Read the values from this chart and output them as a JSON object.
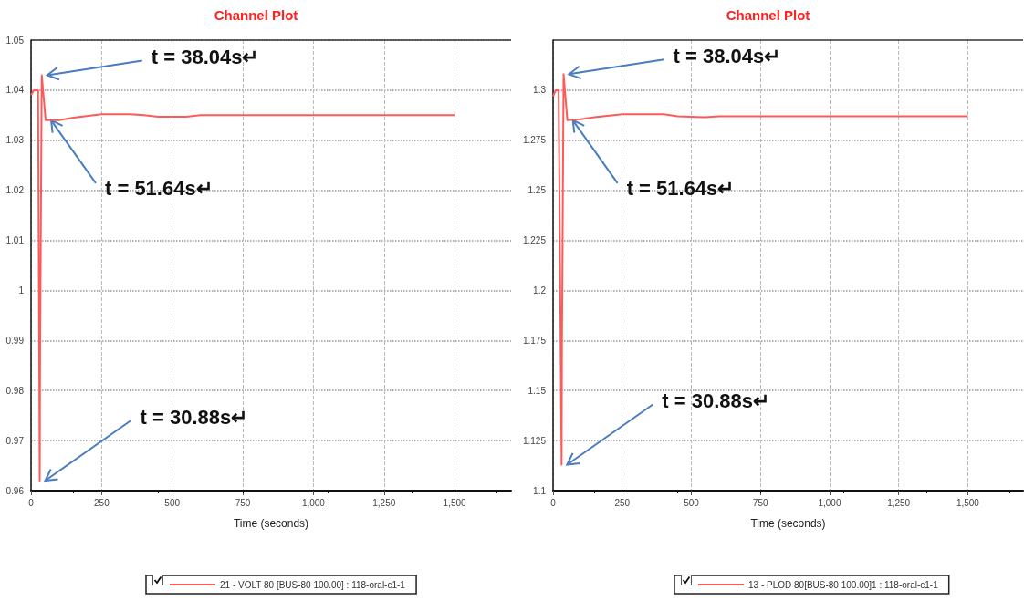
{
  "chart_data": [
    {
      "type": "line",
      "title": "Channel Plot",
      "xlabel": "Time (seconds)",
      "xlim": [
        0,
        1700
      ],
      "xticks": [
        0,
        250,
        500,
        750,
        {
          "value": 1000,
          "label": "1,000"
        },
        {
          "value": 1250,
          "label": "1,250"
        },
        {
          "value": 1500,
          "label": "1,500"
        }
      ],
      "ylim": [
        0.96,
        1.05
      ],
      "yticks": [
        0.96,
        0.97,
        0.98,
        0.99,
        1,
        1.01,
        1.02,
        1.03,
        1.04,
        1.05
      ],
      "grid": true,
      "legend": "bottom",
      "marker": "none",
      "line_style": "solid",
      "series": [
        {
          "name": "21 - VOLT 80 [BUS-80 100.00] : 118-oral-c1-1",
          "color": "#ff5a5a",
          "x": [
            0,
            10,
            25,
            30.88,
            32,
            38.04,
            51.64,
            100,
            150,
            250,
            350,
            400,
            450,
            550,
            600,
            1500
          ],
          "values": [
            1.039,
            1.04,
            1.04,
            0.962,
            0.987,
            1.043,
            1.034,
            1.034,
            1.0345,
            1.0352,
            1.0352,
            1.035,
            1.0347,
            1.0347,
            1.035,
            1.035
          ]
        }
      ],
      "annotations": [
        {
          "text": "t = 38.04s↵",
          "x": 38.04,
          "y": 1.043
        },
        {
          "text": "t = 51.64s↵",
          "x": 51.64,
          "y": 1.034
        },
        {
          "text": "t = 30.88s↵",
          "x": 30.88,
          "y": 0.962
        }
      ]
    },
    {
      "type": "line",
      "title": "Channel Plot",
      "xlabel": "Time (seconds)",
      "xlim": [
        0,
        1700
      ],
      "xticks": [
        0,
        250,
        500,
        750,
        {
          "value": 1000,
          "label": "1,000"
        },
        {
          "value": 1250,
          "label": "1,250"
        },
        {
          "value": 1500,
          "label": "1,500"
        }
      ],
      "ylim": [
        1.1,
        1.325
      ],
      "yticks": [
        1.1,
        1.125,
        1.15,
        1.175,
        1.2,
        1.225,
        1.25,
        1.275,
        1.3
      ],
      "grid": true,
      "legend": "bottom",
      "marker": "none",
      "line_style": "solid",
      "series": [
        {
          "name": "13 - PLOD 80[BUS-80 100.00]1 : 118-oral-c1-1",
          "color": "#ff5a5a",
          "x": [
            0,
            10,
            20,
            30.88,
            32,
            38.04,
            51.64,
            100,
            150,
            250,
            400,
            450,
            550,
            600,
            1500
          ],
          "values": [
            1.297,
            1.3,
            1.3,
            1.113,
            1.17,
            1.308,
            1.285,
            1.2855,
            1.2865,
            1.288,
            1.288,
            1.287,
            1.2865,
            1.287,
            1.287
          ]
        }
      ],
      "annotations": [
        {
          "text": "t = 38.04s↵",
          "x": 38.04,
          "y": 1.308
        },
        {
          "text": "t = 51.64s↵",
          "x": 51.64,
          "y": 1.285
        },
        {
          "text": "t = 30.88s↵",
          "x": 30.88,
          "y": 1.113
        }
      ]
    }
  ]
}
